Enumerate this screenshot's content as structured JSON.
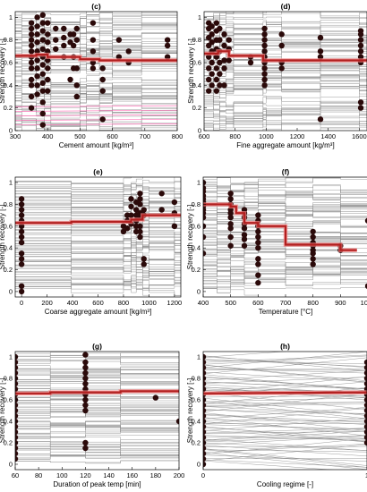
{
  "chart_data": [
    {
      "panel": "(c)",
      "type": "line",
      "xlabel": "Cement amount [kg/m³]",
      "ylabel": "Strength recovery [-]",
      "xlim": [
        300,
        800
      ],
      "ylim": [
        0,
        1.05
      ],
      "xticks": [
        300,
        400,
        500,
        600,
        700,
        800
      ],
      "yticks": [
        0,
        0.2,
        0.4,
        0.6,
        0.8,
        1
      ],
      "steps": [
        320,
        365,
        390,
        410,
        500,
        520,
        560,
        600,
        690
      ],
      "mean": [
        [
          300,
          0.66
        ],
        [
          365,
          0.67
        ],
        [
          400,
          0.65
        ],
        [
          500,
          0.63
        ],
        [
          560,
          0.62
        ],
        [
          690,
          0.62
        ],
        [
          800,
          0.62
        ]
      ],
      "points": [
        {
          "x": 350,
          "y": [
            0.95,
            0.9,
            0.85,
            0.8,
            0.75,
            0.7,
            0.65,
            0.6,
            0.55,
            0.45,
            0.4,
            0.3,
            0.2
          ]
        },
        {
          "x": 368,
          "y": [
            1.0,
            0.92,
            0.85,
            0.78,
            0.7,
            0.62,
            0.55,
            0.48,
            0.4,
            0.32
          ]
        },
        {
          "x": 385,
          "y": [
            1.02,
            0.95,
            0.88,
            0.8,
            0.72,
            0.65,
            0.58,
            0.5,
            0.42,
            0.35,
            0.25,
            0.15,
            0.05
          ]
        },
        {
          "x": 400,
          "y": [
            0.95,
            0.85,
            0.78,
            0.7,
            0.62,
            0.55,
            0.45,
            0.35
          ]
        },
        {
          "x": 425,
          "y": [
            0.9,
            0.8,
            0.72
          ]
        },
        {
          "x": 450,
          "y": [
            0.9,
            0.82,
            0.75,
            0.65
          ]
        },
        {
          "x": 470,
          "y": [
            0.85,
            0.78,
            0.45
          ]
        },
        {
          "x": 480,
          "y": [
            0.85,
            0.75,
            0.65,
            0.55
          ]
        },
        {
          "x": 490,
          "y": [
            0.9,
            0.8,
            0.55,
            0.4,
            0.3
          ]
        },
        {
          "x": 540,
          "y": [
            0.95,
            0.8,
            0.7,
            0.6,
            0.55
          ]
        },
        {
          "x": 570,
          "y": [
            0.55,
            0.45,
            0.35,
            0.1
          ]
        },
        {
          "x": 620,
          "y": [
            0.8,
            0.65
          ]
        },
        {
          "x": 650,
          "y": [
            0.7,
            0.6
          ]
        },
        {
          "x": 770,
          "y": [
            0.8,
            0.75,
            0.65
          ]
        }
      ]
    },
    {
      "panel": "(d)",
      "type": "line",
      "xlabel": "Fine aggregate amount [kg/m³]",
      "ylabel": "Strength recovery [-]",
      "xlim": [
        600,
        1650
      ],
      "ylim": [
        0,
        1.05
      ],
      "xticks": [
        600,
        800,
        1000,
        1200,
        1400,
        1600
      ],
      "yticks": [
        0,
        0.2,
        0.4,
        0.6,
        0.8,
        1
      ],
      "steps": [
        660,
        700,
        740,
        790,
        980,
        1000,
        1100,
        1350,
        1600
      ],
      "mean": [
        [
          600,
          0.68
        ],
        [
          690,
          0.7
        ],
        [
          760,
          0.66
        ],
        [
          980,
          0.62
        ],
        [
          1350,
          0.62
        ],
        [
          1650,
          0.62
        ]
      ],
      "points": [
        {
          "x": 630,
          "y": [
            0.95,
            0.9,
            0.82,
            0.75,
            0.65,
            0.55,
            0.45,
            0.35
          ]
        },
        {
          "x": 650,
          "y": [
            0.92,
            0.85,
            0.78,
            0.7,
            0.6,
            0.5,
            0.4
          ]
        },
        {
          "x": 680,
          "y": [
            0.95,
            0.88,
            0.8,
            0.72,
            0.65,
            0.55,
            0.45,
            0.35
          ]
        },
        {
          "x": 700,
          "y": [
            0.9,
            0.8,
            0.7,
            0.6,
            0.5,
            0.4
          ]
        },
        {
          "x": 730,
          "y": [
            0.85,
            0.75,
            0.62,
            0.55,
            0.4
          ]
        },
        {
          "x": 760,
          "y": [
            0.8,
            0.72,
            0.62
          ]
        },
        {
          "x": 900,
          "y": [
            0.65,
            0.6
          ]
        },
        {
          "x": 990,
          "y": [
            0.9,
            0.85,
            0.8,
            0.75,
            0.7,
            0.65,
            0.6,
            0.55,
            0.5,
            0.45,
            0.4
          ]
        },
        {
          "x": 1100,
          "y": [
            0.85,
            0.75,
            0.6,
            0.55
          ]
        },
        {
          "x": 1350,
          "y": [
            0.82,
            0.7,
            0.65,
            0.1
          ]
        },
        {
          "x": 1610,
          "y": [
            0.88,
            0.85,
            0.8,
            0.75,
            0.7,
            0.65,
            0.6,
            0.25,
            0.2
          ]
        }
      ]
    },
    {
      "panel": "(e)",
      "type": "line",
      "xlabel": "Coarse aggregate amount [kg/m³]",
      "ylabel": "Strength recovery [-]",
      "xlim": [
        -50,
        1250
      ],
      "ylim": [
        -0.05,
        1.05
      ],
      "xticks": [
        0,
        200,
        400,
        600,
        800,
        1000,
        1200
      ],
      "yticks": [
        0,
        0.2,
        0.4,
        0.6,
        0.8,
        1
      ],
      "steps": [
        390,
        800,
        860,
        900,
        950,
        1000,
        1200
      ],
      "mean": [
        [
          -50,
          0.63
        ],
        [
          390,
          0.64
        ],
        [
          860,
          0.66
        ],
        [
          950,
          0.7
        ],
        [
          1250,
          0.7
        ]
      ],
      "points": [
        {
          "x": 0,
          "y": [
            0.85,
            0.8,
            0.75,
            0.7,
            0.65,
            0.6,
            0.55,
            0.5,
            0.45,
            0.35,
            0.3,
            0.25,
            0.05,
            0.0
          ]
        },
        {
          "x": 800,
          "y": [
            0.6,
            0.55
          ]
        },
        {
          "x": 830,
          "y": [
            0.7,
            0.65,
            0.58
          ]
        },
        {
          "x": 860,
          "y": [
            0.85,
            0.78,
            0.7,
            0.62
          ]
        },
        {
          "x": 900,
          "y": [
            0.82,
            0.75,
            0.7,
            0.65,
            0.6,
            0.55
          ]
        },
        {
          "x": 930,
          "y": [
            0.9,
            0.85,
            0.8,
            0.72,
            0.68,
            0.6,
            0.55,
            0.5
          ]
        },
        {
          "x": 960,
          "y": [
            0.75,
            0.7,
            0.3,
            0.25
          ]
        },
        {
          "x": 1100,
          "y": [
            0.9,
            0.75
          ]
        },
        {
          "x": 1200,
          "y": [
            0.82,
            0.72,
            0.6
          ]
        }
      ]
    },
    {
      "panel": "(f)",
      "type": "line",
      "xlabel": "Temperature [°C]",
      "ylabel": "Strength recovery [-]",
      "xlim": [
        400,
        1000
      ],
      "ylim": [
        -0.05,
        1.05
      ],
      "xticks": [
        400,
        500,
        600,
        700,
        800,
        900,
        1000
      ],
      "yticks": [
        0,
        0.2,
        0.4,
        0.6,
        0.8,
        1
      ],
      "steps": [
        450,
        500,
        550,
        600,
        700,
        800,
        900
      ],
      "mean": [
        [
          400,
          0.8
        ],
        [
          500,
          0.78
        ],
        [
          520,
          0.72
        ],
        [
          550,
          0.63
        ],
        [
          600,
          0.6
        ],
        [
          700,
          0.43
        ],
        [
          900,
          0.38
        ],
        [
          960,
          0.38
        ]
      ],
      "points": [
        {
          "x": 400,
          "y": [
            1.0,
            0.95,
            0.92,
            0.88,
            0.85,
            0.82,
            0.78,
            0.75,
            0.72,
            0.68,
            0.6,
            0.5,
            0.35
          ]
        },
        {
          "x": 500,
          "y": [
            0.9,
            0.85,
            0.8,
            0.75,
            0.72,
            0.68,
            0.62,
            0.58,
            0.5,
            0.42
          ]
        },
        {
          "x": 550,
          "y": [
            0.75,
            0.72,
            0.68,
            0.62,
            0.58,
            0.52,
            0.48,
            0.42
          ]
        },
        {
          "x": 600,
          "y": [
            0.7,
            0.65,
            0.6,
            0.55,
            0.5,
            0.45,
            0.4,
            0.3,
            0.25,
            0.15,
            0.08
          ]
        },
        {
          "x": 800,
          "y": [
            0.55,
            0.5,
            0.45,
            0.42,
            0.38,
            0.35,
            0.3,
            0.25
          ]
        },
        {
          "x": 900,
          "y": [
            0.42,
            0.38
          ]
        },
        {
          "x": 1000,
          "y": [
            0.65,
            0.05
          ]
        }
      ]
    },
    {
      "panel": "(g)",
      "type": "line",
      "xlabel": "Duration of peak temp [min]",
      "ylabel": "Strength recovery [-]",
      "xlim": [
        60,
        200
      ],
      "ylim": [
        -0.05,
        1.05
      ],
      "xticks": [
        60,
        80,
        100,
        120,
        140,
        160,
        180,
        200
      ],
      "yticks": [
        0,
        0.2,
        0.4,
        0.6,
        0.8,
        1
      ],
      "steps": [
        90,
        120,
        150
      ],
      "mean": [
        [
          60,
          0.66
        ],
        [
          90,
          0.67
        ],
        [
          150,
          0.68
        ],
        [
          200,
          0.67
        ]
      ],
      "points": [
        {
          "x": 60,
          "y": [
            1.0,
            0.95,
            0.9,
            0.85,
            0.8,
            0.75,
            0.7,
            0.65,
            0.6,
            0.55,
            0.5,
            0.45,
            0.4,
            0.35,
            0.3,
            0.25,
            0.2,
            0.15,
            0.1,
            0.05
          ]
        },
        {
          "x": 120,
          "y": [
            1.02,
            0.95,
            0.9,
            0.85,
            0.8,
            0.75,
            0.7,
            0.65,
            0.6,
            0.55,
            0.5,
            0.2,
            0.15
          ]
        },
        {
          "x": 180,
          "y": [
            0.62
          ]
        },
        {
          "x": 200,
          "y": [
            0.4
          ]
        }
      ]
    },
    {
      "panel": "(h)",
      "type": "line",
      "xlabel": "Cooling regime [-]",
      "ylabel": "Strength recovery [-]",
      "xlim": [
        0,
        1
      ],
      "ylim": [
        -0.05,
        1.05
      ],
      "xticks": [
        0,
        1
      ],
      "yticks": [
        0,
        0.2,
        0.4,
        0.6,
        0.8,
        1
      ],
      "steps": [],
      "mean": [
        [
          0,
          0.66
        ],
        [
          1,
          0.67
        ]
      ],
      "points": [
        {
          "x": 0,
          "y": [
            1.0,
            0.95,
            0.9,
            0.85,
            0.8,
            0.75,
            0.7,
            0.65,
            0.6,
            0.55,
            0.5,
            0.45,
            0.4,
            0.35,
            0.3,
            0.25,
            0.2,
            0.15,
            0.1,
            0.05,
            0.0
          ]
        },
        {
          "x": 1,
          "y": [
            0.95,
            0.9,
            0.85,
            0.8,
            0.75,
            0.7,
            0.65,
            0.6,
            0.55,
            0.5,
            0.45,
            0.4,
            0.35,
            0.3,
            0.25,
            0.2
          ]
        }
      ]
    }
  ]
}
